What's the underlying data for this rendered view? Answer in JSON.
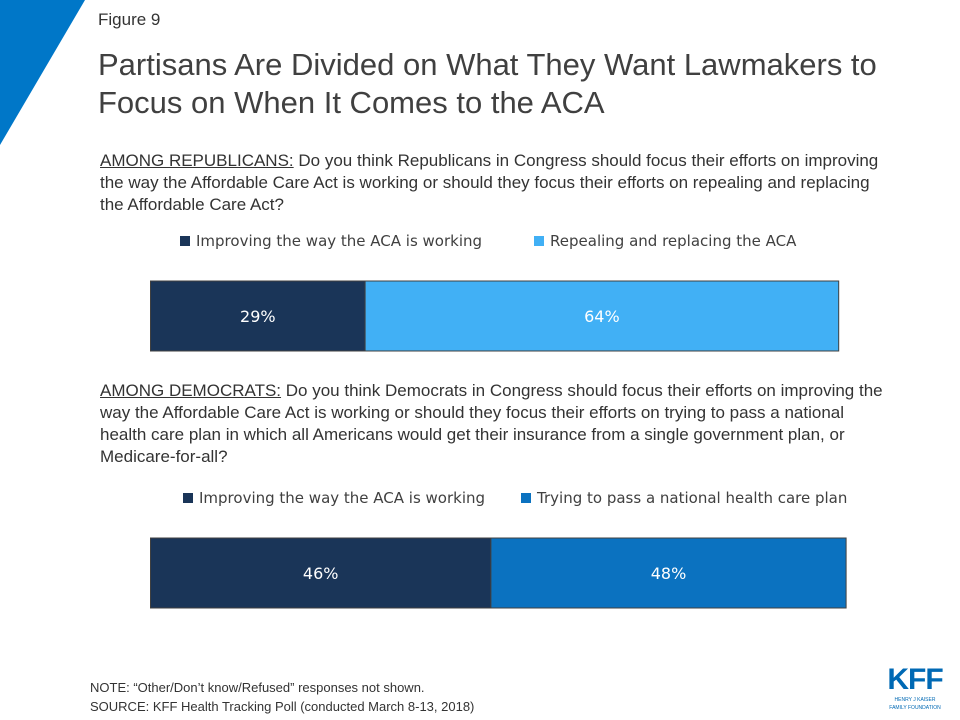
{
  "figure_label": "Figure 9",
  "title": "Partisans Are Divided on What They Want Lawmakers to Focus on When It Comes to the ACA",
  "colors": {
    "accent_triangle": "#0077c8",
    "improving": "#1a3558",
    "repealing": "#41b0f5",
    "national_plan": "#0b72c0"
  },
  "republicans": {
    "lead": "AMONG REPUBLICANS:",
    "question": " Do you think Republicans in Congress should focus their efforts on improving the way the Affordable Care Act is working or should they focus their efforts on repealing and replacing the Affordable Care Act?"
  },
  "democrats": {
    "lead": "AMONG DEMOCRATS:",
    "question": " Do you think Democrats in Congress should focus their efforts on improving the way the Affordable Care Act is working or should they focus their efforts on trying to pass a national health care plan in which all Americans would get their insurance from a single government plan, or Medicare-for-all?"
  },
  "chart_data": [
    {
      "type": "bar",
      "orientation": "horizontal-stacked",
      "group": "AMONG REPUBLICANS",
      "xlim": [
        0,
        100
      ],
      "series": [
        {
          "name": "Improving the way the ACA is working",
          "values": [
            29
          ],
          "label": "29%",
          "color": "#1a3558"
        },
        {
          "name": "Repealing and replacing the ACA",
          "values": [
            64
          ],
          "label": "64%",
          "color": "#41b0f5"
        }
      ],
      "legend": "top"
    },
    {
      "type": "bar",
      "orientation": "horizontal-stacked",
      "group": "AMONG DEMOCRATS",
      "xlim": [
        0,
        100
      ],
      "series": [
        {
          "name": "Improving the way the ACA is working",
          "values": [
            46
          ],
          "label": "46%",
          "color": "#1a3558"
        },
        {
          "name": "Trying to pass a national health care plan",
          "values": [
            48
          ],
          "label": "48%",
          "color": "#0b72c0"
        }
      ],
      "legend": "top"
    }
  ],
  "note": "NOTE: “Other/Don’t know/Refused” responses not shown.",
  "source": "SOURCE: KFF Health Tracking Poll (conducted March 8-13, 2018)",
  "logo": {
    "mark": "KFF",
    "line1": "HENRY J KAISER",
    "line2": "FAMILY FOUNDATION"
  }
}
